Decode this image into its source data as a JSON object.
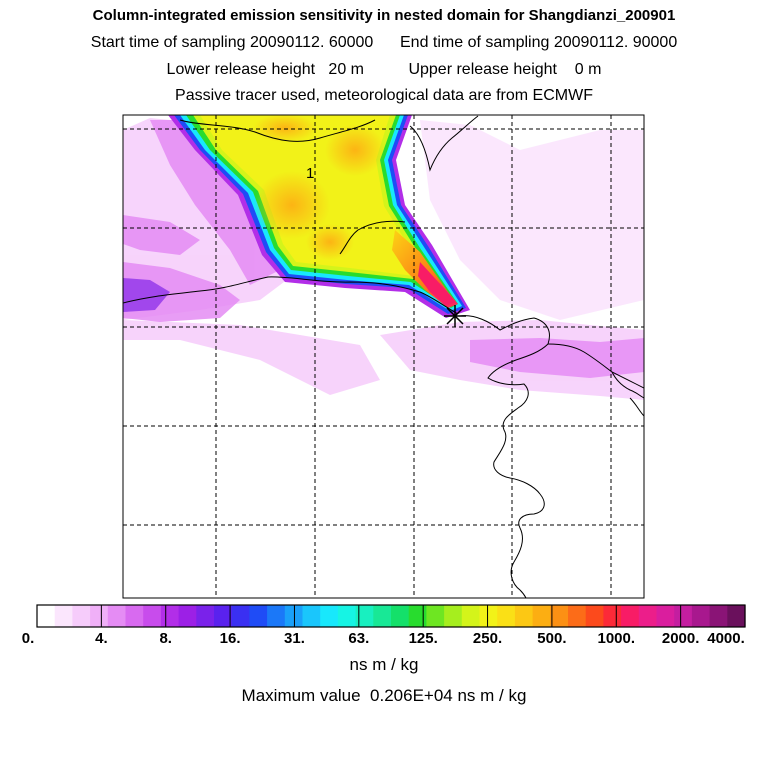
{
  "header": {
    "title": "Column-integrated emission sensitivity in nested domain for Shangdianzi_200901",
    "line2": "Start time of sampling 20090112. 60000      End time of sampling 20090112. 90000",
    "line3": "Lower release height   20 m          Upper release height    0 m",
    "line4": "Passive tracer used, meteorological data are from ECMWF"
  },
  "map": {
    "contour_label": "1",
    "receptor_marker": "star"
  },
  "colorbar": {
    "tick_labels": [
      "0.",
      "4.",
      "8.",
      "16.",
      "31.",
      "63.",
      "125.",
      "250.",
      "500.",
      "1000.",
      "2000.",
      "4000."
    ],
    "colors": [
      "#ffffff",
      "#fbe6fd",
      "#f6ccfb",
      "#f0b0f8",
      "#e58cf4",
      "#d86af0",
      "#c84cec",
      "#b22ee8",
      "#9c20e6",
      "#7a22ea",
      "#5a22ee",
      "#3a30f2",
      "#1f4cf6",
      "#1b78f8",
      "#1aa0fa",
      "#1ac6fc",
      "#18e8fc",
      "#16f4e4",
      "#18f0c0",
      "#18e896",
      "#14e06a",
      "#28dc2e",
      "#6ee622",
      "#a6ee1e",
      "#d4f41a",
      "#f2f218",
      "#fae016",
      "#fcc814",
      "#fcae12",
      "#fc9014",
      "#fc6c18",
      "#fc4a1c",
      "#fc2a38",
      "#f81c66",
      "#ec1e8a",
      "#da1e9e",
      "#c41ea0",
      "#a8188e",
      "#8a1476",
      "#6a105c"
    ],
    "units": "ns m / kg",
    "max_value_text": "Maximum value  0.206E+04 ns m / kg"
  }
}
